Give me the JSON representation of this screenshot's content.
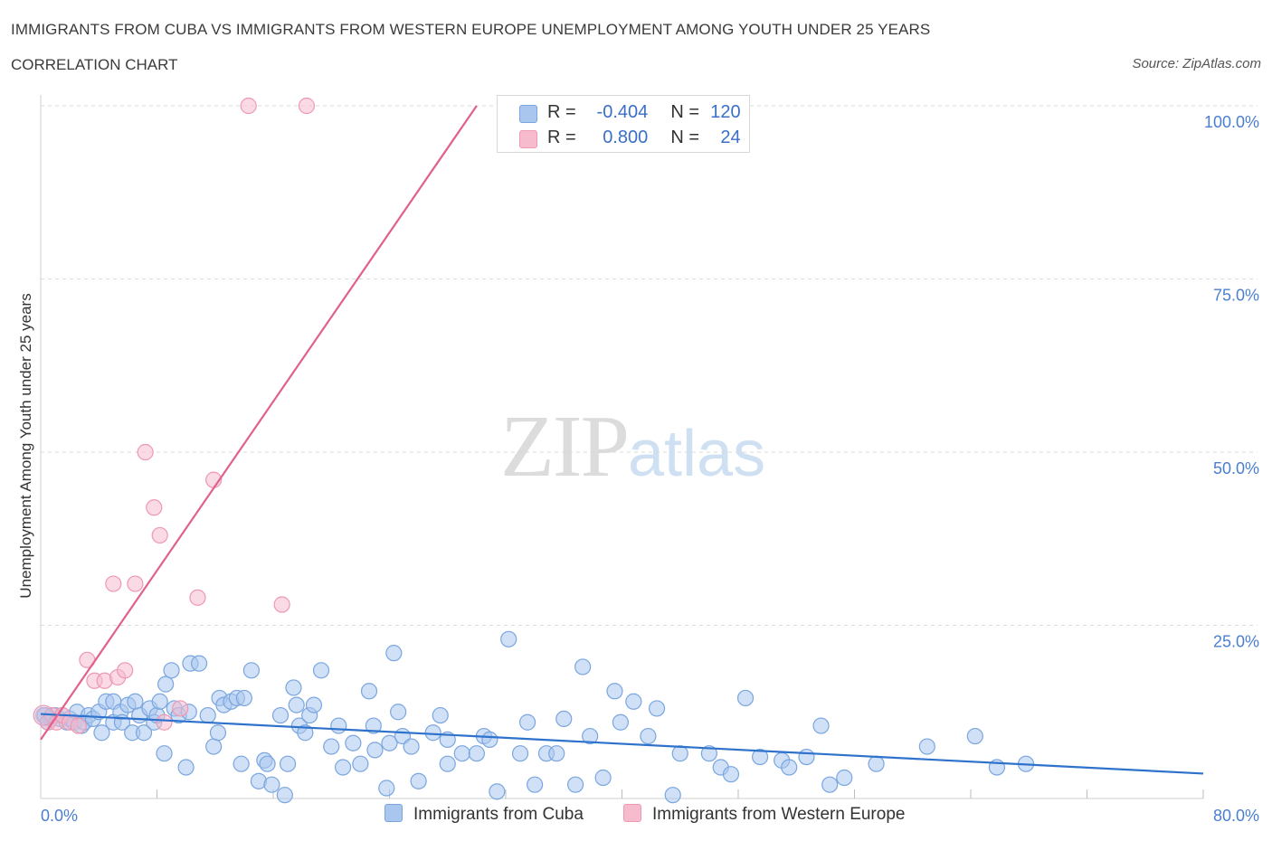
{
  "title": "IMMIGRANTS FROM CUBA VS IMMIGRANTS FROM WESTERN EUROPE UNEMPLOYMENT AMONG YOUTH UNDER 25 YEARS",
  "subtitle": "CORRELATION CHART",
  "source": "Source: ZipAtlas.com",
  "watermark": {
    "zip": "ZIP",
    "atlas": "atlas"
  },
  "colors": {
    "cuba_fill": "#a9c6ef",
    "cuba_stroke": "#7aa6df",
    "cuba_line": "#2e72cc",
    "we_fill": "#f6bccd",
    "we_stroke": "#ee98b2",
    "we_line": "#e0608e",
    "tick": "#4a7fd0",
    "grid": "#d9d9d9"
  },
  "legend": {
    "rows": [
      {
        "r_label": "R =",
        "r_value": "-0.404",
        "n_label": "N =",
        "n_value": "120"
      },
      {
        "r_label": "R =",
        "r_value": " 0.800",
        "n_label": "N =",
        "n_value": " 24"
      }
    ]
  },
  "bottom_legend": [
    "Immigrants from Cuba",
    "Immigrants from Western Europe"
  ],
  "chart_data": {
    "type": "scatter",
    "xlabel": "",
    "ylabel": "Unemployment Among Youth under 25 years",
    "xlim": [
      0,
      80
    ],
    "ylim": [
      0,
      100
    ],
    "x_tick_labels": [
      "0.0%",
      "80.0%"
    ],
    "y_ticks": [
      25,
      50,
      75,
      100
    ],
    "y_tick_labels": [
      "25.0%",
      "50.0%",
      "75.0%",
      "100.0%"
    ],
    "grid": true,
    "series": [
      {
        "name": "Immigrants from Cuba",
        "R": -0.404,
        "N": 120,
        "trend": {
          "x": [
            0,
            80
          ],
          "y": [
            12.2,
            3.6
          ]
        },
        "points": [
          [
            0.3,
            12
          ],
          [
            0.5,
            11
          ],
          [
            0.7,
            11.5
          ],
          [
            1,
            12
          ],
          [
            1.3,
            11.5
          ],
          [
            1.5,
            12
          ],
          [
            1.8,
            11
          ],
          [
            2,
            11.5
          ],
          [
            2.3,
            11
          ],
          [
            2.5,
            12.5
          ],
          [
            2.8,
            10.5
          ],
          [
            3,
            11
          ],
          [
            3.3,
            12
          ],
          [
            3.6,
            11.5
          ],
          [
            4,
            12.5
          ],
          [
            4.2,
            9.5
          ],
          [
            4.5,
            14
          ],
          [
            5,
            11
          ],
          [
            5,
            14
          ],
          [
            5.5,
            12.5
          ],
          [
            5.6,
            11
          ],
          [
            6,
            13.5
          ],
          [
            6.3,
            9.5
          ],
          [
            6.5,
            14
          ],
          [
            6.8,
            12
          ],
          [
            7.1,
            9.5
          ],
          [
            7.5,
            13
          ],
          [
            7.8,
            11
          ],
          [
            8,
            12
          ],
          [
            8.2,
            14
          ],
          [
            8.5,
            6.5
          ],
          [
            8.6,
            16.5
          ],
          [
            9,
            18.5
          ],
          [
            9.2,
            13
          ],
          [
            9.5,
            12
          ],
          [
            10,
            4.5
          ],
          [
            10.2,
            12.5
          ],
          [
            10.3,
            19.5
          ],
          [
            10.9,
            19.5
          ],
          [
            11.5,
            12
          ],
          [
            11.9,
            7.5
          ],
          [
            12.2,
            9.5
          ],
          [
            12.3,
            14.5
          ],
          [
            12.6,
            13.5
          ],
          [
            13.1,
            14
          ],
          [
            13.5,
            14.5
          ],
          [
            13.8,
            5
          ],
          [
            14,
            14.5
          ],
          [
            14.5,
            18.5
          ],
          [
            15,
            2.5
          ],
          [
            15.4,
            5.5
          ],
          [
            15.6,
            5
          ],
          [
            15.9,
            2
          ],
          [
            16.5,
            12
          ],
          [
            17,
            5
          ],
          [
            16.8,
            0.5
          ],
          [
            17.4,
            16
          ],
          [
            17.6,
            13.5
          ],
          [
            17.8,
            10.5
          ],
          [
            18.2,
            9.5
          ],
          [
            18.5,
            12
          ],
          [
            18.8,
            13.5
          ],
          [
            19.3,
            18.5
          ],
          [
            20,
            7.5
          ],
          [
            20.5,
            10.5
          ],
          [
            20.8,
            4.5
          ],
          [
            21.5,
            8
          ],
          [
            22,
            5
          ],
          [
            22.6,
            15.5
          ],
          [
            22.9,
            10.5
          ],
          [
            23,
            7
          ],
          [
            23.8,
            1.5
          ],
          [
            24,
            8
          ],
          [
            24.3,
            21
          ],
          [
            24.6,
            12.5
          ],
          [
            24.9,
            9
          ],
          [
            25.5,
            7.5
          ],
          [
            26,
            2.5
          ],
          [
            27,
            9.5
          ],
          [
            27.5,
            12
          ],
          [
            28,
            5
          ],
          [
            28,
            8.5
          ],
          [
            29,
            6.5
          ],
          [
            30,
            6.5
          ],
          [
            30.5,
            9
          ],
          [
            30.9,
            8.5
          ],
          [
            31.4,
            1
          ],
          [
            32.2,
            23
          ],
          [
            33,
            6.5
          ],
          [
            33.5,
            11
          ],
          [
            34,
            2
          ],
          [
            34.8,
            6.5
          ],
          [
            35.5,
            6.5
          ],
          [
            36,
            11.5
          ],
          [
            36.8,
            2
          ],
          [
            37.3,
            19
          ],
          [
            37.8,
            9
          ],
          [
            38.7,
            3
          ],
          [
            39.5,
            15.5
          ],
          [
            39.9,
            11
          ],
          [
            40.8,
            14
          ],
          [
            41.8,
            9
          ],
          [
            42.4,
            13
          ],
          [
            43.5,
            0.5
          ],
          [
            44,
            6.5
          ],
          [
            46,
            6.5
          ],
          [
            46.8,
            4.5
          ],
          [
            47.5,
            3.5
          ],
          [
            48.5,
            14.5
          ],
          [
            49.5,
            6
          ],
          [
            51,
            5.5
          ],
          [
            51.5,
            4.5
          ],
          [
            52.7,
            6
          ],
          [
            53.7,
            10.5
          ],
          [
            54.3,
            2
          ],
          [
            55.3,
            3
          ],
          [
            57.5,
            5
          ],
          [
            61,
            7.5
          ],
          [
            64.3,
            9
          ],
          [
            65.8,
            4.5
          ],
          [
            67.8,
            5
          ]
        ]
      },
      {
        "name": "Immigrants from Western Europe",
        "R": 0.8,
        "N": 24,
        "trend": {
          "x": [
            0,
            30
          ],
          "y": [
            8.5,
            100
          ]
        },
        "points": [
          [
            0.2,
            12
          ],
          [
            0.5,
            11
          ],
          [
            0.8,
            12
          ],
          [
            1.1,
            11
          ],
          [
            1.5,
            12
          ],
          [
            2,
            11
          ],
          [
            2.6,
            10.5
          ],
          [
            3.2,
            20
          ],
          [
            3.7,
            17
          ],
          [
            4.4,
            17
          ],
          [
            5,
            31
          ],
          [
            5.3,
            17.5
          ],
          [
            5.8,
            18.5
          ],
          [
            6.5,
            31
          ],
          [
            7.2,
            50
          ],
          [
            7.8,
            42
          ],
          [
            8.2,
            38
          ],
          [
            8.5,
            11
          ],
          [
            9.6,
            13
          ],
          [
            10.8,
            29
          ],
          [
            11.9,
            46
          ],
          [
            14.3,
            100
          ],
          [
            16.6,
            28
          ],
          [
            18.3,
            100
          ]
        ]
      }
    ]
  }
}
